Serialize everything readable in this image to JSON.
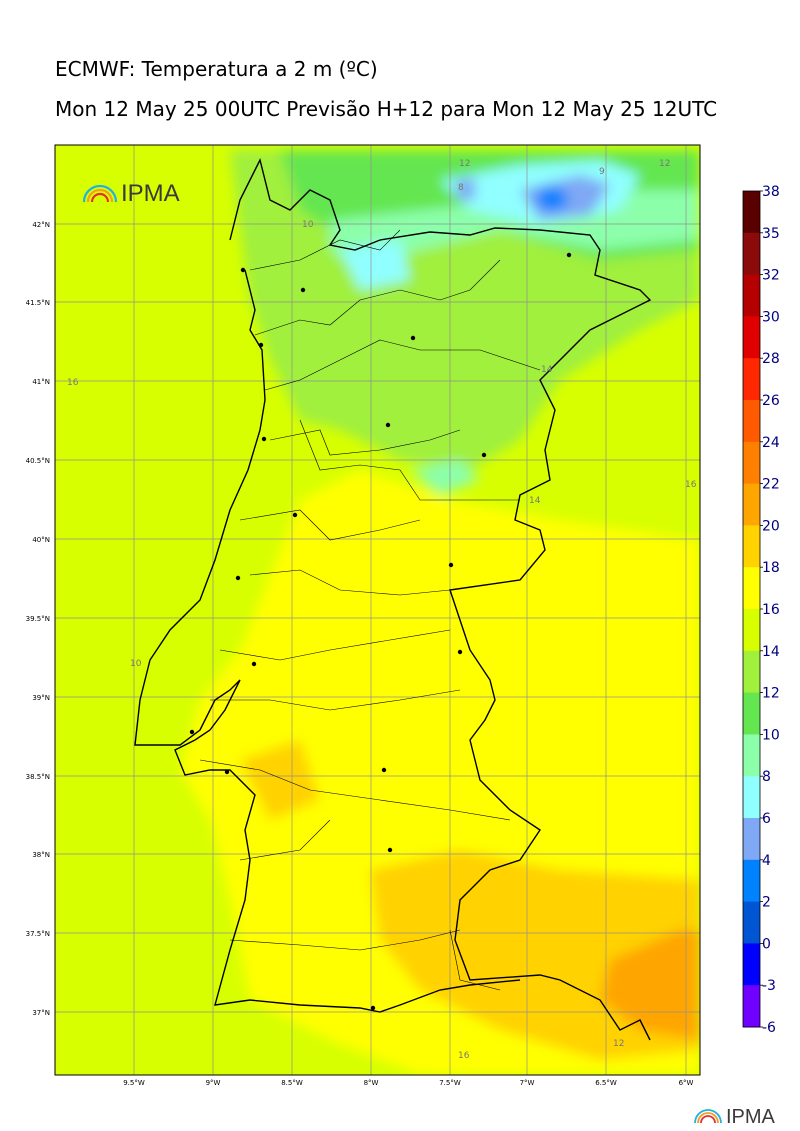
{
  "header": {
    "title": "ECMWF: Temperatura a 2 m (ºC)",
    "subtitle": "Mon 12 May 25 00UTC Previsão H+12 para Mon 12 May 25 12UTC"
  },
  "logo": {
    "text": "IPMA"
  },
  "map": {
    "lat_labels": [
      "42°N",
      "41.5°N",
      "41°N",
      "40.5°N",
      "40°N",
      "39.5°N",
      "39°N",
      "38.5°N",
      "38°N",
      "37.5°N",
      "37°N"
    ],
    "lon_labels": [
      "9.5°W",
      "9°W",
      "8.5°W",
      "8°W",
      "7.5°W",
      "7°W",
      "6.5°W",
      "6°W"
    ],
    "contour_labels": [
      "12",
      "8",
      "12",
      "9",
      "10",
      "16",
      "14",
      "16",
      "10",
      "14",
      "16",
      "12",
      "16"
    ]
  },
  "colorbar": {
    "ticks": [
      {
        "value": "38",
        "color": "#5a0000"
      },
      {
        "value": "35",
        "color": "#8b0a0a"
      },
      {
        "value": "32",
        "color": "#b40000"
      },
      {
        "value": "30",
        "color": "#e00000"
      },
      {
        "value": "28",
        "color": "#ff2800"
      },
      {
        "value": "26",
        "color": "#ff5a00"
      },
      {
        "value": "24",
        "color": "#ff8000"
      },
      {
        "value": "22",
        "color": "#ffa500"
      },
      {
        "value": "20",
        "color": "#ffd200"
      },
      {
        "value": "18",
        "color": "#ffff00"
      },
      {
        "value": "16",
        "color": "#d7ff00"
      },
      {
        "value": "14",
        "color": "#a0f03c"
      },
      {
        "value": "12",
        "color": "#64e650"
      },
      {
        "value": "10",
        "color": "#8cffaa"
      },
      {
        "value": "8",
        "color": "#90ffff"
      },
      {
        "value": "6",
        "color": "#7fa8f5"
      },
      {
        "value": "4",
        "color": "#0082ff"
      },
      {
        "value": "2",
        "color": "#0055d2"
      },
      {
        "value": "0",
        "color": "#0000ff"
      },
      {
        "value": "-3",
        "color": "#7000ff"
      },
      {
        "value": "-6",
        "color": "#d000ff"
      }
    ]
  }
}
